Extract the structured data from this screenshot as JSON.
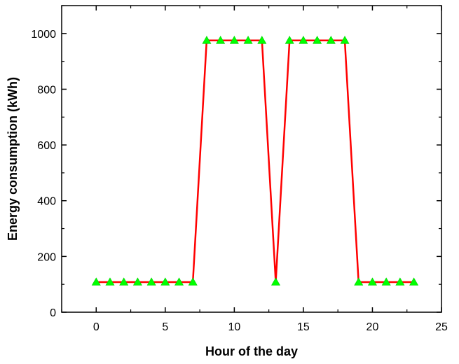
{
  "chart_data": {
    "type": "line",
    "title": "",
    "xlabel": "Hour of the day",
    "ylabel": "Energy consumption (kWh)",
    "xlim": [
      -2.5,
      25
    ],
    "ylim": [
      0,
      1100
    ],
    "xticks": [
      0,
      5,
      10,
      15,
      20,
      25
    ],
    "yticks": [
      0,
      200,
      400,
      600,
      800,
      1000
    ],
    "grid": false,
    "series": [
      {
        "x": [
          0,
          1,
          2,
          3,
          4,
          5,
          6,
          7,
          8,
          9,
          10,
          11,
          12,
          13,
          14,
          15,
          16,
          17,
          18,
          19,
          20,
          21,
          22,
          23
        ],
        "y": [
          108,
          108,
          108,
          108,
          108,
          108,
          108,
          108,
          975,
          975,
          975,
          975,
          975,
          108,
          975,
          975,
          975,
          975,
          975,
          108,
          108,
          108,
          108,
          108
        ],
        "line_color": "#ff0000",
        "marker": "triangle",
        "marker_color": "#00ff00"
      }
    ]
  }
}
